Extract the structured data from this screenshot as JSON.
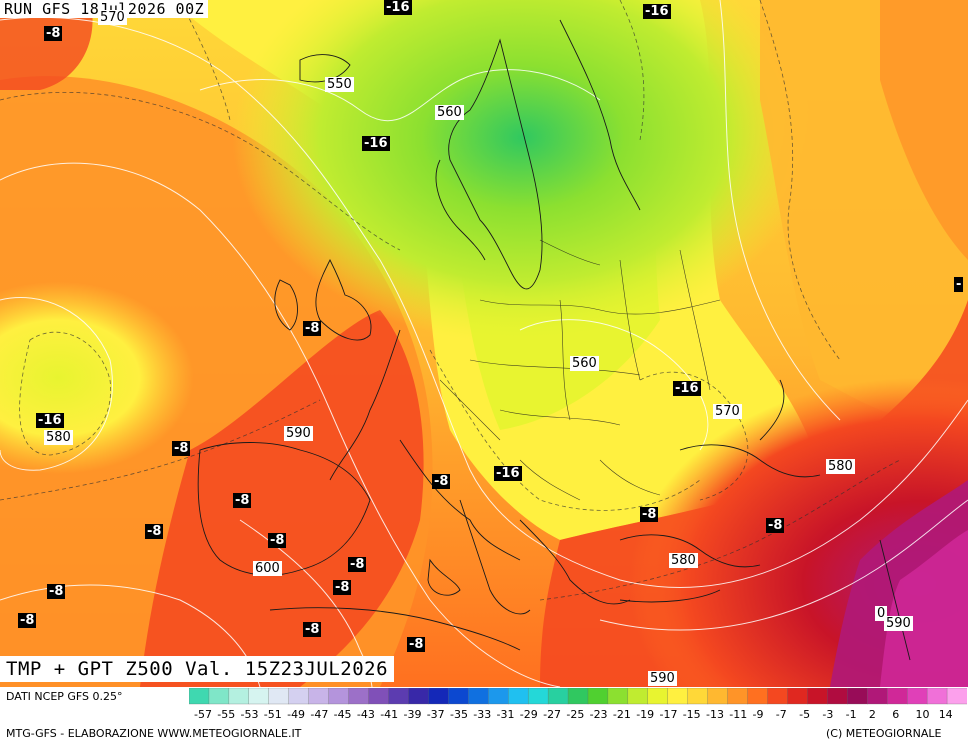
{
  "header": {
    "run": "RUN GFS 18Jul2026 00Z"
  },
  "title": "TMP + GPT Z500 Val. 15Z23JUL2026",
  "footer": {
    "source": "DATI NCEP GFS 0.25°",
    "credit": "MTG-GFS - ELABORAZIONE WWW.METEOGIORNALE.IT",
    "copyright": "(C) METEOGIORNALE"
  },
  "legend": {
    "values": [
      "-57",
      "-55",
      "-53",
      "-51",
      "-49",
      "-47",
      "-45",
      "-43",
      "-41",
      "-39",
      "-37",
      "-35",
      "-33",
      "-31",
      "-29",
      "-27",
      "-25",
      "-23",
      "-21",
      "-19",
      "-17",
      "-15",
      "-13",
      "-11",
      "-9",
      "-7",
      "-5",
      "-3",
      "-1",
      "2",
      "6",
      "10",
      "14"
    ],
    "colors": [
      "#3fd8b0",
      "#7fe6c8",
      "#b4f0e0",
      "#d6f4f0",
      "#e0e8f4",
      "#d4d0f0",
      "#c8b4e8",
      "#b494dc",
      "#9c70c8",
      "#8050b8",
      "#5c3cb0",
      "#3828a8",
      "#1428b8",
      "#0c48d0",
      "#1070e0",
      "#1c98ec",
      "#20c0f0",
      "#24d8d8",
      "#28d0a0",
      "#30c860",
      "#50d030",
      "#8ce030",
      "#c0ec30",
      "#e8f430",
      "#fff040",
      "#ffd838",
      "#ffb830",
      "#ff9428",
      "#ff7020",
      "#f44820",
      "#e02820",
      "#c81428",
      "#b00c40",
      "#980c58",
      "#b01878",
      "#d02898",
      "#e040b8",
      "#f070d8",
      "#fca0ec"
    ]
  },
  "temp_labels": [
    {
      "text": "-8"
    },
    {
      "text": "-16"
    },
    {
      "text": "-16"
    },
    {
      "text": "-16"
    },
    {
      "text": "-8"
    },
    {
      "text": "-16"
    },
    {
      "text": "-8"
    },
    {
      "text": "-8"
    },
    {
      "text": "-8"
    },
    {
      "text": "-8"
    },
    {
      "text": "-8"
    },
    {
      "text": "-8"
    },
    {
      "text": "-8"
    },
    {
      "text": "-8"
    },
    {
      "text": "-8"
    },
    {
      "text": "-8"
    },
    {
      "text": "-16"
    },
    {
      "text": "-16"
    },
    {
      "text": "-8"
    },
    {
      "text": "-8"
    },
    {
      "text": "-"
    }
  ],
  "gpt_labels": [
    {
      "text": "570"
    },
    {
      "text": "550"
    },
    {
      "text": "560"
    },
    {
      "text": "580"
    },
    {
      "text": "590"
    },
    {
      "text": "560"
    },
    {
      "text": "570"
    },
    {
      "text": "580"
    },
    {
      "text": "600"
    },
    {
      "text": "580"
    },
    {
      "text": "590"
    },
    {
      "text": "590"
    },
    {
      "text": "0"
    }
  ]
}
